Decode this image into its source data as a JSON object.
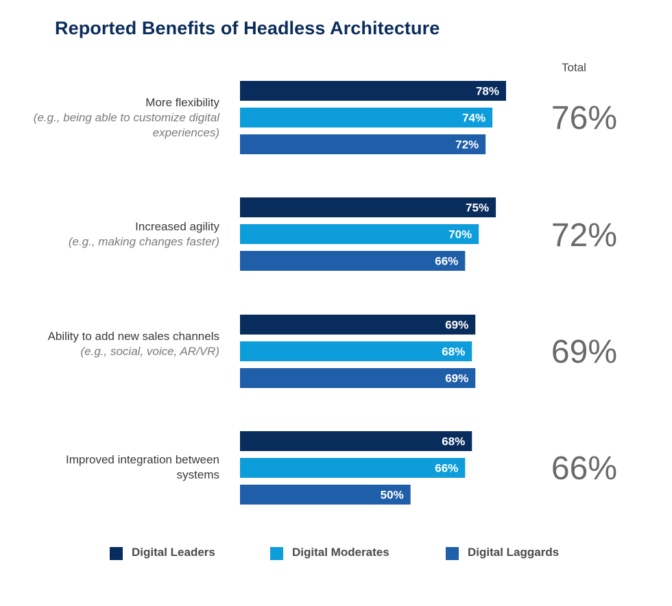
{
  "chart_data": {
    "type": "bar",
    "orientation": "horizontal",
    "title": "Reported Benefits of Headless Architecture",
    "total_label": "Total",
    "value_suffix": "%",
    "categories": [
      {
        "label": "More flexibility",
        "note": "(e.g., being able to customize digital experiences)",
        "total": "76%"
      },
      {
        "label": "Increased agility",
        "note": "(e.g., making changes faster)",
        "total": "72%"
      },
      {
        "label": "Ability to add new sales channels",
        "note": "(e.g., social, voice, AR/VR)",
        "total": "69%"
      },
      {
        "label": "Improved integration between systems",
        "note": "",
        "total": "66%"
      }
    ],
    "series": [
      {
        "name": "Digital Leaders",
        "color": "#082c5c",
        "values": [
          78,
          75,
          69,
          68
        ]
      },
      {
        "name": "Digital Moderates",
        "color": "#0d9ddb",
        "values": [
          74,
          70,
          68,
          66
        ]
      },
      {
        "name": "Digital Laggards",
        "color": "#1f5ea8",
        "values": [
          72,
          66,
          69,
          50
        ]
      }
    ],
    "legend_position": "bottom"
  }
}
